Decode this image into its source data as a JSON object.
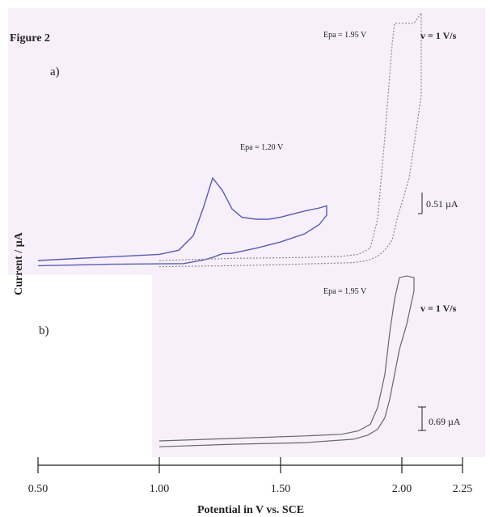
{
  "figure": {
    "title": "Figure 2",
    "panel_a_label": "a)",
    "panel_b_label": "b)",
    "ylabel": "Current / µA",
    "xlabel": "Potential in V vs. SCE"
  },
  "colors": {
    "background_tint": "#f7f0fa",
    "blue_trace": "#5a5ab5",
    "dotted_trace": "#888888",
    "b_trace": "#666666",
    "axis": "#222222"
  },
  "chart_data": [
    {
      "type": "line",
      "panel": "a",
      "scan_rate_label": "v = 1 V/s",
      "scale_bar_label": "0.51 µA",
      "annotations": [
        {
          "text": "Epa = 1.20 V",
          "series": "blue"
        },
        {
          "text": "Epa = 1.95 V",
          "series": "dotted"
        }
      ],
      "xlim": [
        0.5,
        2.25
      ],
      "series": [
        {
          "name": "blue",
          "style": "solid",
          "x": [
            0.5,
            0.8,
            1.0,
            1.08,
            1.14,
            1.18,
            1.22,
            1.26,
            1.3,
            1.34,
            1.4,
            1.45,
            1.5,
            1.55,
            1.6,
            1.66,
            1.69,
            1.69,
            1.66,
            1.6,
            1.5,
            1.4,
            1.3,
            1.26,
            1.22,
            1.18,
            1.1,
            0.8,
            0.5
          ],
          "y": [
            0.0,
            0.18,
            0.3,
            0.5,
            1.2,
            2.5,
            4.0,
            3.4,
            2.5,
            2.1,
            2.0,
            2.0,
            2.1,
            2.25,
            2.4,
            2.55,
            2.65,
            2.2,
            1.75,
            1.3,
            0.9,
            0.6,
            0.35,
            0.33,
            0.15,
            0.02,
            -0.15,
            -0.18,
            -0.25
          ]
        },
        {
          "name": "dotted",
          "style": "dotted",
          "x": [
            1.0,
            1.3,
            1.6,
            1.75,
            1.82,
            1.87,
            1.9,
            1.93,
            1.95,
            1.96,
            1.97,
            2.05,
            2.08,
            2.08,
            2.03,
            1.98,
            1.96,
            1.93,
            1.9,
            1.86,
            1.8,
            1.5,
            1.3,
            1.0
          ],
          "y": [
            0.0,
            0.1,
            0.15,
            0.2,
            0.3,
            0.6,
            2.0,
            6.0,
            9.0,
            10.5,
            11.5,
            11.5,
            12.0,
            8.0,
            4.0,
            2.0,
            1.0,
            0.5,
            0.2,
            0.0,
            -0.1,
            -0.2,
            -0.25,
            -0.3
          ]
        }
      ]
    },
    {
      "type": "line",
      "panel": "b",
      "scan_rate_label": "v = 1 V/s",
      "scale_bar_label": "0.69 µA",
      "annotations": [
        {
          "text": "Epa = 1.95 V",
          "series": "b"
        }
      ],
      "xlim": [
        0.5,
        2.25
      ],
      "series": [
        {
          "name": "b",
          "style": "solid",
          "x": [
            1.0,
            1.3,
            1.6,
            1.75,
            1.82,
            1.87,
            1.9,
            1.93,
            1.95,
            1.97,
            1.99,
            2.02,
            2.05,
            2.05,
            2.02,
            1.99,
            1.97,
            1.95,
            1.93,
            1.9,
            1.86,
            1.8,
            1.6,
            1.3,
            1.0
          ],
          "y": [
            0.0,
            0.15,
            0.3,
            0.4,
            0.6,
            1.0,
            2.0,
            4.0,
            6.5,
            8.5,
            9.8,
            9.9,
            9.8,
            9.0,
            7.0,
            5.5,
            4.0,
            2.5,
            1.4,
            0.7,
            0.35,
            0.1,
            -0.1,
            -0.2,
            -0.35
          ]
        }
      ]
    },
    {
      "type": "axis",
      "axis": "x",
      "ticks": [
        0.5,
        1.0,
        1.5,
        2.0,
        2.25
      ],
      "tick_labels": [
        "0.50",
        "1.00",
        "1.50",
        "2.00",
        "2.25"
      ]
    }
  ]
}
